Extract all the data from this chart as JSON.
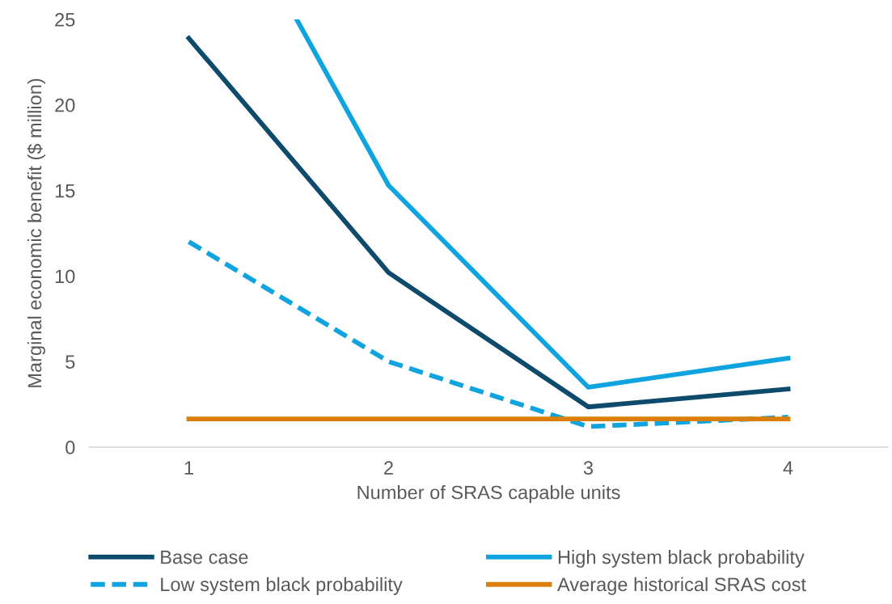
{
  "chart_data": {
    "type": "line",
    "xlabel": "Number of SRAS capable units",
    "ylabel": "Marginal economic benefit ($ million)",
    "x": [
      1,
      2,
      3,
      4
    ],
    "xlim": [
      0.5,
      4.5
    ],
    "xticks": [
      1,
      2,
      3,
      4
    ],
    "ylim": [
      0,
      25
    ],
    "yticks": [
      0,
      5,
      10,
      15,
      20,
      25
    ],
    "grid": false,
    "legend": "bottom",
    "marker": "none",
    "series": [
      {
        "name": "Base case",
        "color": "#0e4a6b",
        "values": [
          23.9,
          10.2,
          2.35,
          3.4
        ]
      },
      {
        "name": "Low system black probability",
        "color": "#0fa3e0",
        "line_style": "dashed",
        "values": [
          12.0,
          5.0,
          1.2,
          1.75
        ]
      },
      {
        "name": "High system black probability",
        "color": "#0fa3e0",
        "x": [
          1.54,
          2,
          3,
          4
        ],
        "values": [
          25,
          15.3,
          3.5,
          5.2
        ]
      },
      {
        "name": "Average historical SRAS cost",
        "color": "#d97f0a",
        "values": [
          1.65,
          1.65,
          1.65,
          1.65
        ]
      }
    ]
  }
}
